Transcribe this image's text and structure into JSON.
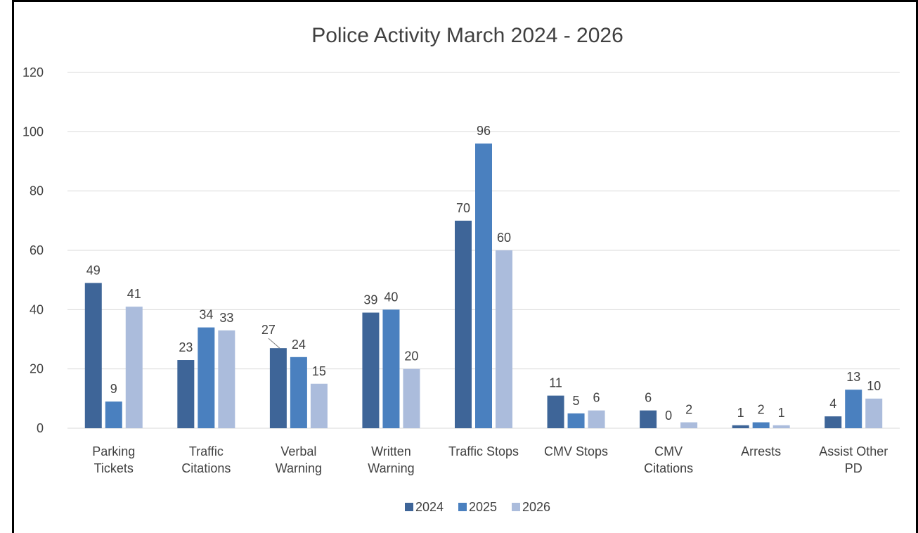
{
  "chart_data": {
    "type": "bar",
    "title": "Police Activity March 2024 - 2026",
    "xlabel": "",
    "ylabel": "",
    "ylim": [
      0,
      120
    ],
    "yticks": [
      "0",
      "20",
      "40",
      "60",
      "80",
      "100",
      "120"
    ],
    "ytick_values": [
      0,
      20,
      40,
      60,
      80,
      100,
      120
    ],
    "grid": true,
    "legend_position": "bottom",
    "categories": [
      [
        "Parking",
        "Tickets"
      ],
      [
        "Traffic",
        "Citations"
      ],
      [
        "Verbal",
        "Warning"
      ],
      [
        "Written",
        "Warning"
      ],
      [
        "Traffic Stops"
      ],
      [
        "CMV Stops"
      ],
      [
        "CMV",
        "Citations"
      ],
      [
        "Arrests"
      ],
      [
        "Assist Other",
        "PD"
      ]
    ],
    "series": [
      {
        "name": "2024",
        "color": "#3e6598",
        "values": [
          49,
          23,
          27,
          39,
          70,
          11,
          6,
          1,
          4
        ]
      },
      {
        "name": "2025",
        "color": "#4a80bf",
        "values": [
          9,
          34,
          24,
          40,
          96,
          5,
          0,
          2,
          13
        ]
      },
      {
        "name": "2026",
        "color": "#abbcdc",
        "values": [
          41,
          33,
          15,
          20,
          60,
          6,
          2,
          1,
          10
        ]
      }
    ]
  }
}
